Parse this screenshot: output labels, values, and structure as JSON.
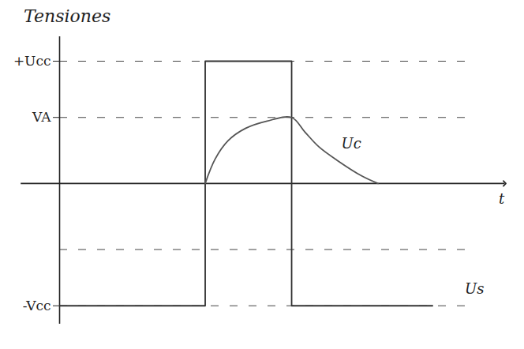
{
  "chart_data": {
    "type": "line",
    "title": "Tensiones",
    "xlabel": "t",
    "xlim": [
      0,
      10.3
    ],
    "ylim": [
      -1.15,
      1.2
    ],
    "yticks": [
      {
        "value": 1,
        "label": "+Ucc"
      },
      {
        "value": 0.54,
        "label": "VA"
      },
      {
        "value": -1,
        "label": "-Vcc"
      }
    ],
    "dashed_levels": [
      1,
      0.54,
      -0.54,
      -1
    ],
    "tick_labels": "y",
    "series": [
      {
        "name": "Us",
        "color": "#333333",
        "line_style": "solid",
        "x": [
          0,
          3.37,
          3.37,
          5.37,
          5.37,
          8.63
        ],
        "values": [
          -1,
          -1,
          1,
          1,
          -1,
          -1
        ],
        "label_x": 9.6,
        "label_y": -0.93
      },
      {
        "name": "Uc",
        "color": "#555555",
        "line_style": "solid",
        "x": [
          3.37,
          3.6,
          3.9,
          4.3,
          4.8,
          5.37,
          5.68,
          6.0,
          6.42,
          7.0,
          7.37
        ],
        "values": [
          0,
          0.2,
          0.35,
          0.45,
          0.51,
          0.54,
          0.42,
          0.3,
          0.19,
          0.06,
          0
        ],
        "label_x": 6.75,
        "label_y": 0.26
      }
    ]
  }
}
